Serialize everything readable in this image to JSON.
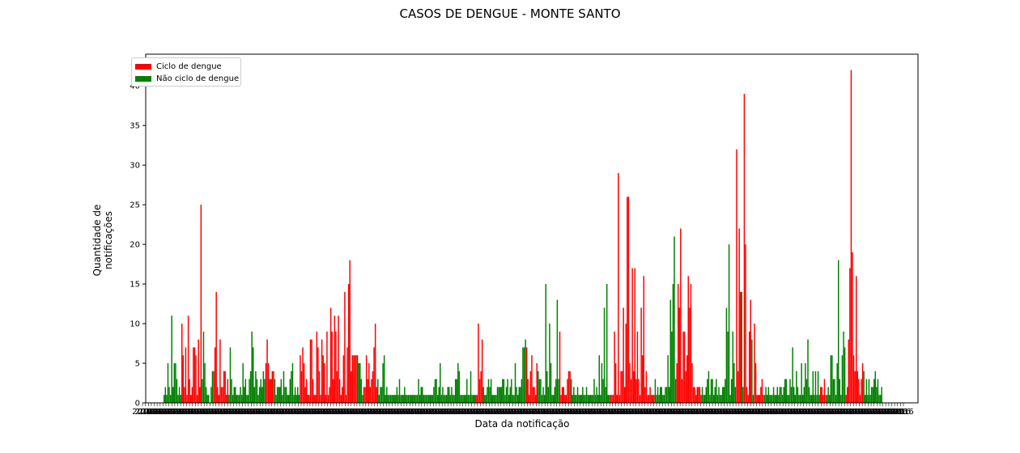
{
  "chart_data": {
    "type": "bar",
    "title": "CASOS DE DENGUE - MONTE SANTO",
    "xlabel": "Data da notificação",
    "ylabel": "Quantidade de notificações",
    "ylim": [
      0,
      44
    ],
    "yticks": [
      0,
      5,
      10,
      15,
      20,
      25,
      30,
      35,
      40
    ],
    "legend": {
      "placement": "top-left"
    },
    "series": [
      {
        "name": "Ciclo de dengue",
        "color": "#ff0000"
      },
      {
        "name": "Não ciclo de dengue",
        "color": "#008000"
      }
    ],
    "x_tick_labels_note": "dense overlapping date tick labels (illegible)",
    "values": [
      1,
      2,
      1,
      5,
      2,
      1,
      11,
      2,
      5,
      5,
      3,
      1,
      2,
      1,
      10,
      6,
      2,
      7,
      1,
      11,
      3,
      1,
      2,
      7,
      7,
      6,
      1,
      8,
      2,
      25,
      3,
      9,
      5,
      2,
      1,
      1,
      0,
      2,
      4,
      4,
      7,
      14,
      2,
      1,
      8,
      2,
      2,
      4,
      4,
      1,
      3,
      1,
      7,
      3,
      1,
      2,
      2,
      1,
      1,
      1,
      2,
      1,
      5,
      2,
      3,
      1,
      1,
      3,
      4,
      9,
      7,
      2,
      4,
      3,
      1,
      2,
      3,
      2,
      4,
      3,
      5,
      8,
      5,
      3,
      3,
      4,
      4,
      3,
      1,
      2,
      2,
      2,
      3,
      1,
      4,
      2,
      2,
      1,
      1,
      3,
      4,
      5,
      1,
      2,
      1,
      2,
      1,
      6,
      4,
      7,
      5,
      2,
      3,
      1,
      1,
      8,
      8,
      3,
      1,
      1,
      9,
      7,
      4,
      1,
      8,
      6,
      5,
      1,
      9,
      1,
      2,
      12,
      9,
      3,
      11,
      9,
      4,
      11,
      3,
      1,
      2,
      6,
      14,
      1,
      7,
      15,
      18,
      4,
      6,
      6,
      6,
      6,
      6,
      5,
      5,
      3,
      1,
      2,
      2,
      6,
      3,
      5,
      2,
      3,
      4,
      7,
      10,
      2,
      3,
      1,
      2,
      2,
      5,
      6,
      1,
      2,
      1,
      1,
      1,
      1,
      1,
      1,
      1,
      2,
      1,
      3,
      1,
      1,
      1,
      2,
      1,
      1,
      1,
      1,
      1,
      1,
      1,
      1,
      1,
      1,
      3,
      1,
      2,
      2,
      1,
      1,
      1,
      1,
      1,
      1,
      1,
      1,
      2,
      3,
      3,
      1,
      2,
      5,
      1,
      2,
      1,
      1,
      1,
      2,
      2,
      1,
      2,
      1,
      1,
      3,
      3,
      5,
      4,
      1,
      1,
      1,
      1,
      1,
      3,
      1,
      1,
      4,
      1,
      1,
      1,
      1,
      1,
      10,
      3,
      4,
      8,
      2,
      1,
      1,
      2,
      3,
      2,
      3,
      1,
      1,
      1,
      1,
      2,
      2,
      2,
      2,
      3,
      3,
      1,
      2,
      3,
      1,
      2,
      3,
      1,
      1,
      5,
      2,
      1,
      2,
      2,
      3,
      7,
      7,
      8,
      7,
      3,
      1,
      4,
      6,
      2,
      2,
      1,
      5,
      4,
      3,
      3,
      1,
      2,
      1,
      15,
      4,
      2,
      10,
      5,
      1,
      1,
      2,
      3,
      13,
      3,
      9,
      1,
      2,
      2,
      1,
      1,
      3,
      4,
      4,
      3,
      1,
      2,
      1,
      1,
      2,
      1,
      1,
      1,
      2,
      1,
      1,
      2,
      1,
      1,
      1,
      1,
      1,
      3,
      1,
      2,
      1,
      6,
      1,
      5,
      3,
      12,
      2,
      15,
      1,
      1,
      1,
      1,
      1,
      9,
      5,
      1,
      29,
      1,
      4,
      4,
      12,
      2,
      10,
      26,
      26,
      5,
      3,
      17,
      4,
      17,
      3,
      9,
      3,
      1,
      12,
      6,
      16,
      2,
      4,
      1,
      1,
      2,
      1,
      1,
      1,
      3,
      1,
      2,
      1,
      2,
      2,
      1,
      1,
      2,
      2,
      6,
      2,
      13,
      9,
      15,
      21,
      3,
      5,
      15,
      12,
      22,
      3,
      9,
      9,
      4,
      6,
      16,
      12,
      15,
      5,
      2,
      2,
      1,
      2,
      2,
      2,
      1,
      2,
      1,
      1,
      2,
      3,
      4,
      1,
      3,
      3,
      1,
      2,
      3,
      1,
      2,
      1,
      1,
      2,
      2,
      3,
      12,
      9,
      20,
      1,
      3,
      9,
      5,
      2,
      32,
      4,
      22,
      14,
      14,
      2,
      39,
      20,
      2,
      1,
      9,
      13,
      8,
      1,
      10,
      5,
      1,
      1,
      1,
      2,
      3,
      1,
      1,
      2,
      1,
      2,
      1,
      1,
      1,
      2,
      1,
      1,
      2,
      1,
      2,
      2,
      1,
      2,
      3,
      3,
      1,
      1,
      3,
      2,
      7,
      2,
      1,
      4,
      2,
      1,
      1,
      5,
      1,
      2,
      5,
      3,
      8,
      2,
      1,
      1,
      4,
      1,
      4,
      1,
      4,
      1,
      2,
      2,
      1,
      3,
      1,
      1,
      2,
      1,
      6,
      6,
      3,
      3,
      1,
      5,
      18,
      3,
      1,
      6,
      9,
      7,
      1,
      2,
      8,
      17,
      42,
      19,
      6,
      4,
      16,
      4,
      3,
      1,
      3,
      5,
      4,
      1,
      3,
      1,
      3,
      1,
      2,
      2,
      3,
      4,
      2,
      3,
      1,
      1,
      2
    ],
    "colors": [
      "G",
      "G",
      "G",
      "G",
      "G",
      "G",
      "G",
      "G",
      "G",
      "G",
      "G",
      "G",
      "G",
      "G",
      "R",
      "R",
      "R",
      "R",
      "R",
      "R",
      "R",
      "R",
      "R",
      "R",
      "R",
      "R",
      "R",
      "R",
      "R",
      "R",
      "G",
      "G",
      "G",
      "G",
      "G",
      "G",
      "G",
      "G",
      "G",
      "R",
      "R",
      "R",
      "R",
      "R",
      "R",
      "R",
      "R",
      "R",
      "R",
      "R",
      "R",
      "G",
      "G",
      "G",
      "G",
      "G",
      "G",
      "G",
      "G",
      "G",
      "G",
      "G",
      "G",
      "G",
      "G",
      "G",
      "G",
      "G",
      "G",
      "G",
      "G",
      "G",
      "G",
      "G",
      "G",
      "G",
      "G",
      "G",
      "G",
      "G",
      "R",
      "R",
      "R",
      "R",
      "R",
      "R",
      "R",
      "G",
      "G",
      "G",
      "G",
      "G",
      "G",
      "G",
      "G",
      "G",
      "G",
      "G",
      "G",
      "G",
      "G",
      "G",
      "G",
      "G",
      "G",
      "G",
      "G",
      "R",
      "R",
      "R",
      "R",
      "R",
      "R",
      "R",
      "R",
      "R",
      "R",
      "R",
      "R",
      "R",
      "R",
      "R",
      "R",
      "R",
      "R",
      "R",
      "R",
      "R",
      "R",
      "R",
      "R",
      "R",
      "R",
      "R",
      "R",
      "R",
      "R",
      "R",
      "R",
      "R",
      "R",
      "R",
      "R",
      "R",
      "R",
      "R",
      "R",
      "R",
      "R",
      "R",
      "R",
      "R",
      "G",
      "G",
      "G",
      "G",
      "G",
      "R",
      "R",
      "R",
      "R",
      "R",
      "R",
      "R",
      "R",
      "R",
      "R",
      "R",
      "G",
      "G",
      "G",
      "G",
      "G",
      "G",
      "G",
      "G",
      "G",
      "G",
      "G",
      "G",
      "G",
      "G",
      "G",
      "G",
      "G",
      "G",
      "G",
      "G",
      "G",
      "G",
      "G",
      "G",
      "G",
      "G",
      "G",
      "G",
      "G",
      "G",
      "G",
      "G",
      "G",
      "G",
      "G",
      "G",
      "G",
      "G",
      "G",
      "G",
      "G",
      "G",
      "G",
      "G",
      "G",
      "G",
      "G",
      "G",
      "G",
      "G",
      "G",
      "G",
      "G",
      "G",
      "G",
      "G",
      "G",
      "G",
      "G",
      "G",
      "G",
      "G",
      "G",
      "G",
      "G",
      "G",
      "G",
      "G",
      "G",
      "G",
      "G",
      "G",
      "G",
      "G",
      "G",
      "G",
      "G",
      "R",
      "R",
      "R",
      "R",
      "R",
      "R",
      "G",
      "G",
      "G",
      "G",
      "G",
      "G",
      "G",
      "G",
      "G",
      "G",
      "G",
      "G",
      "G",
      "G",
      "G",
      "G",
      "G",
      "G",
      "G",
      "G",
      "G",
      "G",
      "G",
      "G",
      "G",
      "G",
      "G",
      "G",
      "G",
      "G",
      "G",
      "G",
      "G",
      "G",
      "R",
      "R",
      "R",
      "R",
      "R",
      "R",
      "R",
      "R",
      "R",
      "G",
      "G",
      "G",
      "G",
      "G",
      "G",
      "G",
      "G",
      "G",
      "G",
      "G",
      "G",
      "G",
      "G",
      "G",
      "G",
      "G",
      "R",
      "R",
      "R",
      "R",
      "R",
      "R",
      "R",
      "R",
      "R",
      "G",
      "G",
      "G",
      "G",
      "G",
      "G",
      "G",
      "G",
      "G",
      "G",
      "G",
      "G",
      "G",
      "G",
      "G",
      "G",
      "G",
      "G",
      "G",
      "G",
      "G",
      "G",
      "G",
      "G",
      "G",
      "G",
      "G",
      "G",
      "G",
      "G",
      "G",
      "R",
      "R",
      "R",
      "R",
      "R",
      "R",
      "R",
      "R",
      "R",
      "R",
      "R",
      "R",
      "R",
      "R",
      "R",
      "R",
      "R",
      "R",
      "R",
      "R",
      "R",
      "R",
      "R",
      "R",
      "R",
      "R",
      "R",
      "R",
      "R",
      "R",
      "R",
      "R",
      "R",
      "R",
      "R",
      "G",
      "G",
      "G",
      "G",
      "G",
      "G",
      "G",
      "G",
      "G",
      "G",
      "G",
      "G",
      "G",
      "G",
      "G",
      "G",
      "G",
      "R",
      "R",
      "R",
      "R",
      "R",
      "R",
      "R",
      "R",
      "R",
      "R",
      "R",
      "R",
      "R",
      "R",
      "R",
      "R",
      "R",
      "R",
      "R",
      "R",
      "G",
      "G",
      "G",
      "G",
      "G",
      "G",
      "G",
      "G",
      "G",
      "G",
      "G",
      "G",
      "G",
      "G",
      "G",
      "G",
      "G",
      "G",
      "G",
      "G",
      "G",
      "G",
      "G",
      "G",
      "G",
      "G",
      "G",
      "R",
      "R",
      "R",
      "R",
      "G",
      "G",
      "R",
      "R",
      "R",
      "R",
      "R",
      "R",
      "G",
      "G",
      "R",
      "R",
      "R",
      "R",
      "R",
      "R",
      "R",
      "R",
      "G",
      "G",
      "G",
      "G",
      "G",
      "G",
      "G",
      "G",
      "G",
      "G",
      "G",
      "G",
      "G",
      "G",
      "G",
      "G",
      "G",
      "G",
      "G",
      "G",
      "G",
      "G",
      "G",
      "G",
      "G",
      "G",
      "G",
      "G",
      "G",
      "G",
      "G",
      "G",
      "G",
      "G",
      "G",
      "G",
      "G",
      "G",
      "G",
      "G",
      "G",
      "G",
      "G",
      "G",
      "R",
      "R",
      "R",
      "R",
      "R",
      "G",
      "G",
      "G",
      "G",
      "G",
      "G",
      "G",
      "G",
      "G",
      "G",
      "G",
      "G",
      "G",
      "G",
      "G",
      "R",
      "R",
      "R",
      "R",
      "R",
      "R",
      "R",
      "R",
      "R",
      "R",
      "R",
      "R",
      "R",
      "R",
      "G",
      "G",
      "G",
      "G",
      "G",
      "G",
      "G",
      "G",
      "G",
      "G",
      "G",
      "G",
      "G",
      "G",
      "G",
      "G",
      "G",
      "G",
      "G",
      "G",
      "G",
      "G"
    ]
  }
}
